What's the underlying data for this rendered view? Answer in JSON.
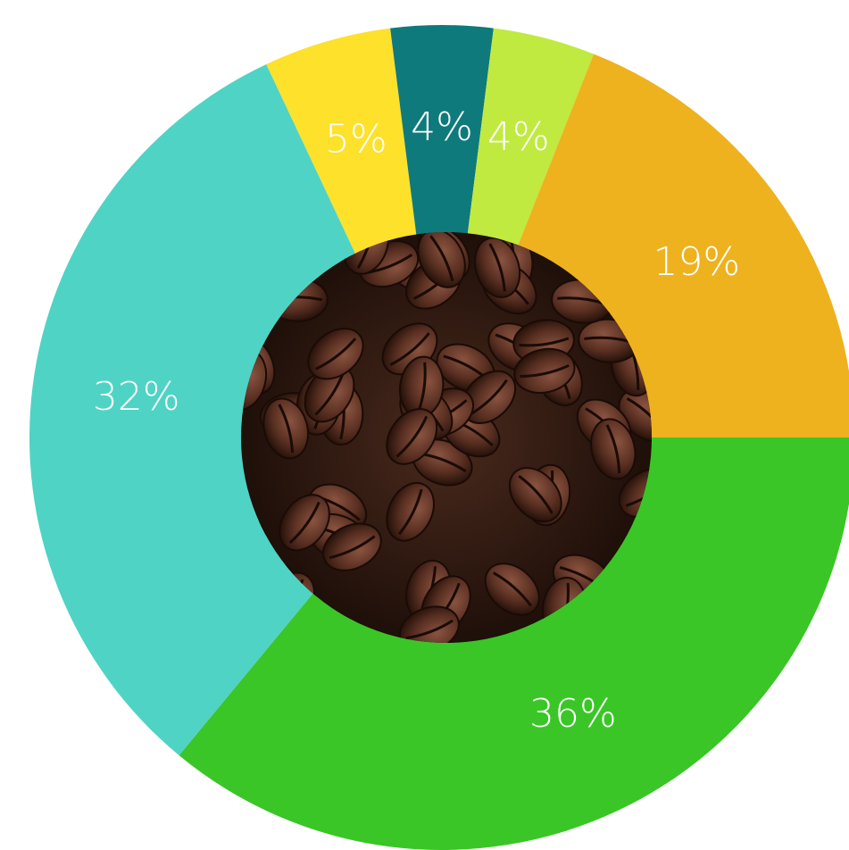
{
  "chart_data": {
    "type": "pie",
    "values": [
      36,
      32,
      5,
      4,
      4,
      19
    ],
    "value_labels": [
      "36%",
      "32%",
      "5%",
      "4%",
      "4%",
      "19%"
    ],
    "colors": [
      "#3ac626",
      "#4fd3c4",
      "#fde12b",
      "#0e7a7c",
      "#c0ea3f",
      "#eeb21f"
    ],
    "hole": true
  }
}
